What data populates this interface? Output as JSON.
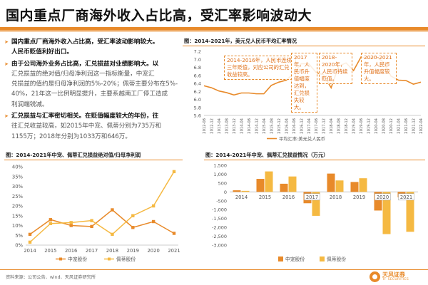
{
  "header": {
    "title": "国内重点厂商海外收入占比高，受汇率影响波动大"
  },
  "bullets": [
    {
      "lines": [
        {
          "text": "国内重点厂商海外收入占比高，受汇率波动影响较大。",
          "strong": true
        },
        {
          "text": "人民币贬值利好出口。",
          "strong": true
        }
      ]
    },
    {
      "lines": [
        {
          "text": "由于公司海外业务占比高，汇兑损益对业绩影响大。以",
          "strong": true
        },
        {
          "text": "汇兑损益的绝对值/归母净利润这一指标衡量，中宠汇",
          "strong": false
        },
        {
          "text": "兑损益的值约是归母净利润的5%-20%；佩蒂主要分布在5%-",
          "strong": false
        },
        {
          "text": "40%，21年这一比例明显提升，主要系越南工厂停工造成",
          "strong": false
        },
        {
          "text": "利润端锐减。",
          "strong": false
        }
      ]
    },
    {
      "lines": [
        {
          "text": "汇兑损益与汇率密切相关。在贬值幅度较大的年份，往",
          "strong": true
        },
        {
          "text": "往汇兑收益较高，如2015年中宠、佩蒂分别为735万和",
          "strong": false
        },
        {
          "text": "1155万；2018年分别为1033万和646万。",
          "strong": false
        }
      ]
    }
  ],
  "figures": {
    "fx_title": "图：2014-2021年，美元兑人民币平均汇率情况",
    "ratio_title": "图：2014-2021年中宠、佩蒂汇兑损益绝对值/归母净利润",
    "gain_title": "图：2014-2021年中宠、佩蒂汇兑损益情况（万元）"
  },
  "annotations": [
    {
      "id": "a1",
      "text": "2014-2016年，人民币连续三年贬值，对应公司的汇兑收益较高。"
    },
    {
      "id": "a2",
      "text": "2017年，人民币升值幅度达到，汇兑损失较大。"
    },
    {
      "id": "a3",
      "text": "2018-2020年，人民币持续贬值。"
    },
    {
      "id": "a4",
      "text": "2020-2021年，人民币升值幅度较大。"
    }
  ],
  "footer": {
    "source": "资料来源：公司公告、wind、天风证券研究所",
    "logo_cn": "天风证券",
    "logo_en": "TF SECURITIES"
  },
  "chart_data": [
    {
      "type": "line",
      "title": "2014-2021年，美元兑人民币平均汇率情况",
      "legend": [
        "平均汇率:美元兑人民币"
      ],
      "legend_position": "bottom",
      "x_ticks": [
        "2012-08",
        "2012-12",
        "2013-04",
        "2013-08",
        "2013-12",
        "2014-04",
        "2014-08",
        "2014-12",
        "2015-04",
        "2015-08",
        "2015-12",
        "2016-04",
        "2016-08",
        "2016-12",
        "2017-04",
        "2017-08",
        "2017-12",
        "2018-04",
        "2018-08",
        "2018-12",
        "2019-04",
        "2019-08",
        "2019-12",
        "2020-04",
        "2020-08",
        "2020-12",
        "2021-04",
        "2021-08",
        "2021-12",
        "2022-04"
      ],
      "series": [
        {
          "name": "平均汇率:美元兑人民币",
          "color": "#e88a2a",
          "x": [
            "2012-08",
            "2012-12",
            "2013-04",
            "2013-08",
            "2013-12",
            "2014-04",
            "2014-08",
            "2014-12",
            "2015-04",
            "2015-08",
            "2015-12",
            "2016-04",
            "2016-08",
            "2016-12",
            "2017-04",
            "2017-08",
            "2017-12",
            "2018-04",
            "2018-08",
            "2018-12",
            "2019-04",
            "2019-08",
            "2019-12",
            "2020-04",
            "2020-08",
            "2020-12",
            "2021-04",
            "2021-08",
            "2021-12",
            "2022-04"
          ],
          "values": [
            6.34,
            6.29,
            6.21,
            6.17,
            6.11,
            6.16,
            6.16,
            6.14,
            6.14,
            6.35,
            6.43,
            6.48,
            6.65,
            6.89,
            6.89,
            6.67,
            6.61,
            6.29,
            6.83,
            6.91,
            6.72,
            7.06,
            7.02,
            7.07,
            6.93,
            6.58,
            6.48,
            6.47,
            6.38,
            6.43
          ]
        }
      ],
      "ylim": [
        5.6,
        7.2
      ],
      "y_ticks": [
        5.6,
        5.8,
        6.0,
        6.2,
        6.4,
        6.6,
        6.8,
        7.0,
        7.2
      ],
      "grid": false
    },
    {
      "type": "line",
      "title": "2014-2021年中宠、佩蒂汇兑损益绝对值/归母净利润",
      "categories": [
        "2014",
        "2015",
        "2016",
        "2017",
        "2018",
        "2019",
        "2020",
        "2021"
      ],
      "series": [
        {
          "name": "中宠股份",
          "color": "#e88a2a",
          "values": [
            5.5,
            13.0,
            10.0,
            9.5,
            18.0,
            9.0,
            12.0,
            6.0
          ]
        },
        {
          "name": "佩蒂股份",
          "color": "#f5b942",
          "values": [
            1.5,
            11.0,
            11.5,
            12.5,
            5.5,
            15.0,
            20.0,
            37.5
          ]
        }
      ],
      "ylim": [
        0,
        40
      ],
      "y_ticks": [
        "0%",
        "5%",
        "10%",
        "15%",
        "20%",
        "25%",
        "30%",
        "35%",
        "40%"
      ],
      "legend_position": "bottom",
      "grid": false
    },
    {
      "type": "bar",
      "title": "2014-2021年中宠、佩蒂汇兑损益情况（万元）",
      "categories": [
        "2014",
        "2015",
        "2016",
        "2017",
        "2018",
        "2019",
        "2020",
        "2021"
      ],
      "series": [
        {
          "name": "中宠股份",
          "color": "#e88a2a",
          "values": [
            90,
            735,
            460,
            -640,
            1033,
            560,
            -1050,
            -310
          ]
        },
        {
          "name": "佩蒂股份",
          "color": "#f5b942",
          "values": [
            60,
            1155,
            870,
            -1350,
            646,
            770,
            -2380,
            -2250
          ]
        }
      ],
      "ylim": [
        -3000,
        1500
      ],
      "y_ticks": [
        "1,500",
        "1,000",
        "500",
        "0",
        "-500",
        "-1,000",
        "-1,500",
        "-2,000",
        "-2,500",
        "-3,000"
      ],
      "legend_position": "bottom",
      "grid": false
    }
  ]
}
